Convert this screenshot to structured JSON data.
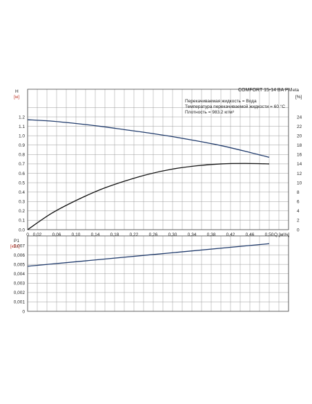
{
  "chart_data": [
    {
      "type": "line",
      "title": "COMFORT 15-14 BA PM",
      "info_lines": [
        "Перекачиваемая жидкость = Вода",
        "Температура перекачиваемой жидкости = 60 °C",
        "Плотность = 983.2 кг/м³"
      ],
      "xlabel": "Q",
      "xunit": "[м³/ч]",
      "ylabel": "H",
      "yunit": "[м]",
      "y2label": "eta",
      "y2unit": "[%]",
      "xlim": [
        0,
        0.54
      ],
      "ylim": [
        0,
        1.3
      ],
      "y2lim": [
        0,
        26
      ],
      "grid": true,
      "x_ticks": [
        "0",
        "0,02",
        "0,06",
        "0,10",
        "0,14",
        "0,18",
        "0,22",
        "0,26",
        "0,30",
        "0,34",
        "0,38",
        "0,42",
        "0,46",
        "0,50"
      ],
      "y_ticks": [
        "0.0",
        "0.1",
        "0.2",
        "0.3",
        "0.4",
        "0.5",
        "0.6",
        "0.7",
        "0.8",
        "0.9",
        "1.0",
        "1.1",
        "1.2"
      ],
      "y2_ticks": [
        "0",
        "2",
        "4",
        "6",
        "8",
        "10",
        "12",
        "14",
        "16",
        "18",
        "20",
        "22",
        "24"
      ],
      "series": [
        {
          "axis": "left",
          "x": [
            0,
            0.05,
            0.1,
            0.15,
            0.2,
            0.25,
            0.3,
            0.35,
            0.4,
            0.45,
            0.5
          ],
          "y": [
            1.17,
            1.155,
            1.13,
            1.1,
            1.065,
            1.03,
            0.99,
            0.945,
            0.895,
            0.835,
            0.77
          ]
        },
        {
          "axis": "right",
          "x": [
            0,
            0.05,
            0.1,
            0.15,
            0.2,
            0.25,
            0.3,
            0.35,
            0.4,
            0.45,
            0.5
          ],
          "y": [
            0,
            3.5,
            6.2,
            8.5,
            10.3,
            11.8,
            12.9,
            13.6,
            14.0,
            14.1,
            14.0
          ]
        }
      ]
    },
    {
      "type": "line",
      "title": "",
      "ylabel": "P1",
      "yunit": "[кВт]",
      "xlim": [
        0,
        0.54
      ],
      "ylim": [
        0,
        0.0075
      ],
      "grid": true,
      "y_ticks": [
        "0",
        "0,001",
        "0,002",
        "0,003",
        "0,004",
        "0,005",
        "0,006",
        "0,007"
      ],
      "series": [
        {
          "axis": "left",
          "x": [
            0,
            0.5
          ],
          "y": [
            0.0048,
            0.0072
          ]
        }
      ]
    }
  ],
  "colors": {
    "curve": "#1f3a6b",
    "grid": "#999999",
    "unit": "#c0392b"
  }
}
